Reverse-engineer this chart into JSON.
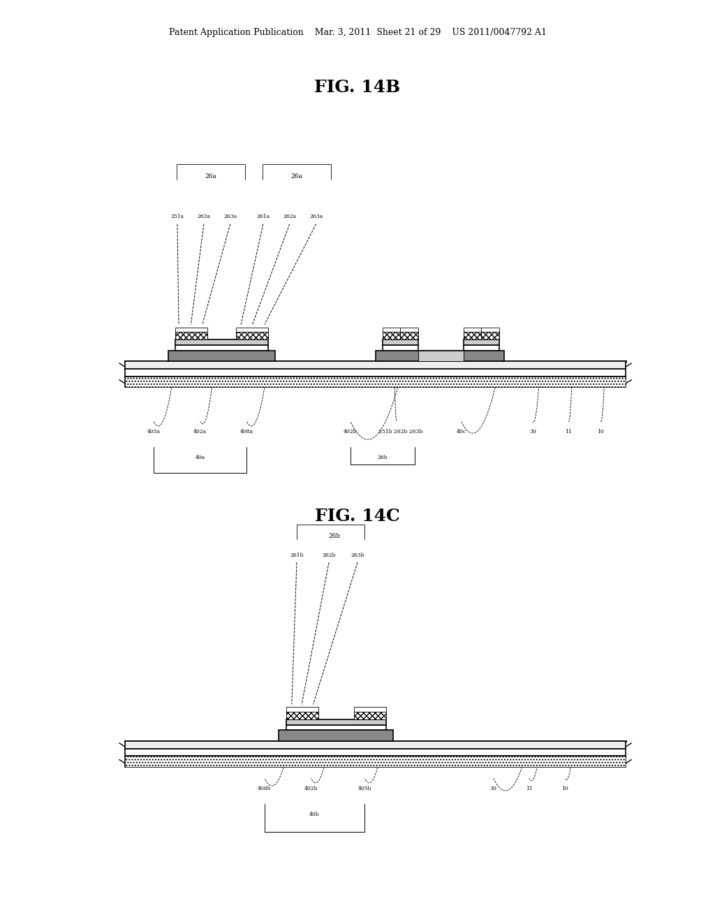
{
  "bg_color": "#ffffff",
  "header_text": "Patent Application Publication    Mar. 3, 2011  Sheet 21 of 29    US 2011/0047792 A1",
  "fig14b_title": "FIG. 14B",
  "fig14c_title": "FIG. 14C",
  "line_color": "#000000",
  "fig14b_top_labels": [
    [
      "26a",
      0.295
    ],
    [
      "26a",
      0.415
    ]
  ],
  "fig14b_sub_labels": [
    [
      "251a",
      0.248
    ],
    [
      "262a",
      0.285
    ],
    [
      "263a",
      0.322
    ],
    [
      "261a",
      0.368
    ],
    [
      "262a",
      0.405
    ],
    [
      "263a",
      0.442
    ]
  ],
  "fig14b_bottom_labels": [
    [
      "405a",
      0.215
    ],
    [
      "402a",
      0.28
    ],
    [
      "408a",
      0.345
    ],
    [
      "402b",
      0.49
    ],
    [
      "251b 262b 263b",
      0.56
    ],
    [
      "40c",
      0.645
    ],
    [
      "30",
      0.745
    ],
    [
      "11",
      0.795
    ],
    [
      "10",
      0.84
    ]
  ],
  "fig14c_top_label": [
    "26b",
    0.468
  ],
  "fig14c_sub_labels": [
    [
      "261b",
      0.415
    ],
    [
      "262b",
      0.46
    ],
    [
      "263b",
      0.5
    ]
  ],
  "fig14c_bottom_labels": [
    [
      "406b",
      0.37
    ],
    [
      "402b",
      0.435
    ],
    [
      "405b",
      0.51
    ],
    [
      "30",
      0.69
    ],
    [
      "11",
      0.74
    ],
    [
      "10",
      0.79
    ]
  ]
}
